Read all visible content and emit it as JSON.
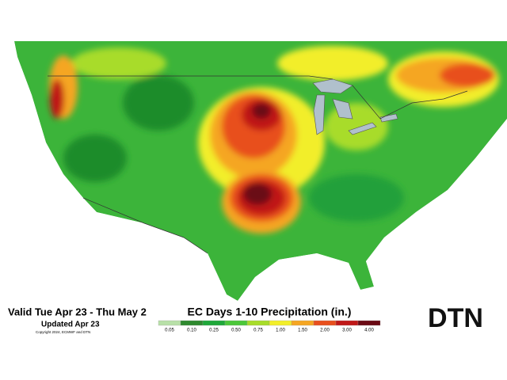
{
  "header": {
    "valid": "Valid Tue Apr 23 - Thu May 2",
    "updated": "Updated Apr 23",
    "copyright": "Copyright 2024, ECMWF and DTN"
  },
  "map": {
    "title": "EC Days 1-10 Precipitation (in.)",
    "legend": [
      {
        "label": "0.05",
        "color": "#b8e0a8"
      },
      {
        "label": "0.10",
        "color": "#2f8a2f"
      },
      {
        "label": "0.25",
        "color": "#1fa83a"
      },
      {
        "label": "0.50",
        "color": "#4cc83a"
      },
      {
        "label": "0.75",
        "color": "#a8dc2a"
      },
      {
        "label": "1.00",
        "color": "#f2ee2a"
      },
      {
        "label": "1.50",
        "color": "#f5a623"
      },
      {
        "label": "2.00",
        "color": "#e8501e"
      },
      {
        "label": "3.00",
        "color": "#c01818"
      },
      {
        "label": "4.00",
        "color": "#6a0a14"
      }
    ]
  },
  "logo": "DTN"
}
